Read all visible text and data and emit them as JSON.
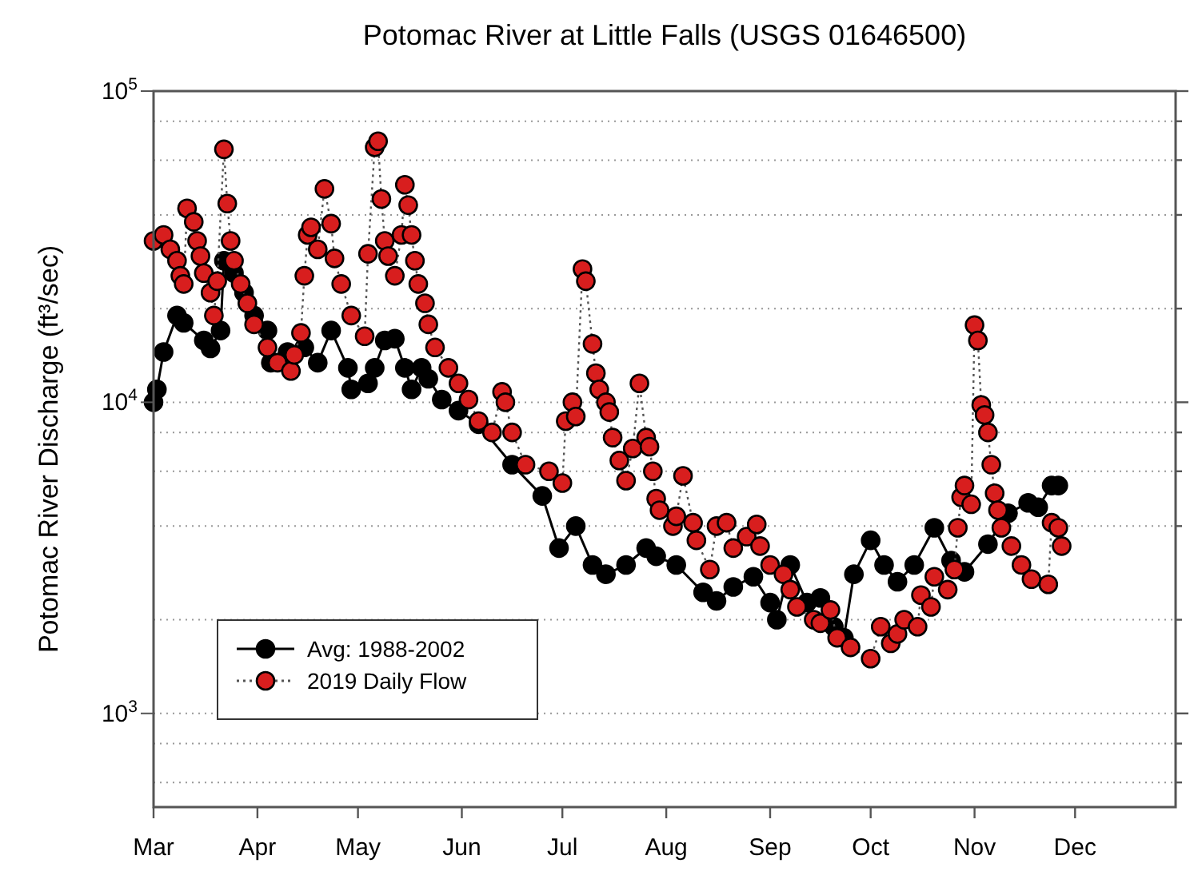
{
  "chart_data": {
    "type": "line",
    "title": "Potomac River at Little Falls (USGS 01646500)",
    "ylabel": "Potomac River Discharge (ft³/sec)",
    "xlim": [
      "--03-01",
      "--12-31"
    ],
    "xticks": [
      {
        "value": "--03-01",
        "label": "Mar"
      },
      {
        "value": "--04-01",
        "label": "Apr"
      },
      {
        "value": "--05-01",
        "label": "May"
      },
      {
        "value": "--06-01",
        "label": "Jun"
      },
      {
        "value": "--07-01",
        "label": "Jul"
      },
      {
        "value": "--08-01",
        "label": "Aug"
      },
      {
        "value": "--09-01",
        "label": "Sep"
      },
      {
        "value": "--10-01",
        "label": "Oct"
      },
      {
        "value": "--11-01",
        "label": "Nov"
      },
      {
        "value": "--12-01",
        "label": "Dec"
      }
    ],
    "ylim": [
      500,
      100000
    ],
    "log": true,
    "yticks": [
      {
        "value": 600,
        "label": null
      },
      {
        "value": 800,
        "label": null
      },
      {
        "value": 1000,
        "label": "10$^{3}$"
      },
      {
        "value": 2000,
        "label": null
      },
      {
        "value": 4000,
        "label": null
      },
      {
        "value": 6000,
        "label": null
      },
      {
        "value": 8000,
        "label": null
      },
      {
        "value": 10000,
        "label": "10$^{4}$"
      },
      {
        "value": 20000,
        "label": null
      },
      {
        "value": 40000,
        "label": null
      },
      {
        "value": 60000,
        "label": null
      },
      {
        "value": 80000,
        "label": null
      },
      {
        "value": 100000,
        "label": "10$^{5}$"
      }
    ],
    "grid": "y",
    "legend": "bottom left",
    "marker": "circle",
    "series": [
      {
        "name": "Avg: 1988-2002",
        "color": "#000000",
        "line_style": "solid",
        "x": [
          "--03-01",
          "--03-02",
          "--03-04",
          "--03-08",
          "--03-10",
          "--03-16",
          "--03-18",
          "--03-21",
          "--03-22",
          "--03-25",
          "--03-28",
          "--03-31",
          "--04-04",
          "--04-05",
          "--04-10",
          "--04-15",
          "--04-19",
          "--04-23",
          "--04-28",
          "--04-29",
          "--05-04",
          "--05-06",
          "--05-09",
          "--05-12",
          "--05-15",
          "--05-17",
          "--05-20",
          "--05-22",
          "--05-26",
          "--05-31",
          "--06-06",
          "--06-16",
          "--06-25",
          "--06-30",
          "--07-05",
          "--07-10",
          "--07-14",
          "--07-20",
          "--07-26",
          "--07-29",
          "--08-04",
          "--08-12",
          "--08-16",
          "--08-21",
          "--08-27",
          "--09-01",
          "--09-03",
          "--09-07",
          "--09-12",
          "--09-16",
          "--09-20",
          "--09-23",
          "--09-26",
          "--10-01",
          "--10-05",
          "--10-09",
          "--10-14",
          "--10-20",
          "--10-25",
          "--10-29",
          "--11-05",
          "--11-11",
          "--11-17",
          "--11-20",
          "--11-24",
          "--11-26"
        ],
        "values": [
          10000,
          11000,
          14500,
          19000,
          18000,
          15800,
          14900,
          17000,
          28500,
          26000,
          22500,
          19000,
          17000,
          13400,
          14500,
          15000,
          13400,
          17000,
          12900,
          11000,
          11500,
          12900,
          15800,
          16000,
          12900,
          11000,
          12900,
          11900,
          10200,
          9400,
          8500,
          6300,
          5000,
          3400,
          4000,
          3000,
          2800,
          3000,
          3400,
          3200,
          3000,
          2450,
          2300,
          2550,
          2750,
          2270,
          2000,
          3000,
          2270,
          2350,
          1900,
          1750,
          2800,
          3600,
          3000,
          2650,
          3000,
          3950,
          3100,
          2850,
          3500,
          4400,
          4750,
          4600,
          5400,
          5400
        ]
      },
      {
        "name": "2019 Daily Flow",
        "color": "#d81e1e",
        "line_style": "dotted",
        "x": [
          "--03-01",
          "--03-04",
          "--03-06",
          "--03-08",
          "--03-09",
          "--03-10",
          "--03-11",
          "--03-13",
          "--03-14",
          "--03-15",
          "--03-16",
          "--03-18",
          "--03-19",
          "--03-20",
          "--03-22",
          "--03-23",
          "--03-24",
          "--03-25",
          "--03-27",
          "--03-29",
          "--03-31",
          "--04-04",
          "--04-07",
          "--04-11",
          "--04-12",
          "--04-14",
          "--04-15",
          "--04-16",
          "--04-17",
          "--04-19",
          "--04-21",
          "--04-23",
          "--04-24",
          "--04-26",
          "--04-29",
          "--05-03",
          "--05-04",
          "--05-06",
          "--05-07",
          "--05-08",
          "--05-09",
          "--05-10",
          "--05-12",
          "--05-14",
          "--05-15",
          "--05-16",
          "--05-17",
          "--05-18",
          "--05-19",
          "--05-21",
          "--05-22",
          "--05-24",
          "--05-28",
          "--05-31",
          "--06-03",
          "--06-06",
          "--06-10",
          "--06-13",
          "--06-14",
          "--06-16",
          "--06-20",
          "--06-27",
          "--07-01",
          "--07-02",
          "--07-04",
          "--07-05",
          "--07-07",
          "--07-08",
          "--07-10",
          "--07-11",
          "--07-12",
          "--07-14",
          "--07-15",
          "--07-16",
          "--07-18",
          "--07-20",
          "--07-22",
          "--07-24",
          "--07-26",
          "--07-27",
          "--07-28",
          "--07-29",
          "--07-30",
          "--08-03",
          "--08-04",
          "--08-06",
          "--08-09",
          "--08-10",
          "--08-14",
          "--08-16",
          "--08-19",
          "--08-21",
          "--08-25",
          "--08-28",
          "--08-29",
          "--09-01",
          "--09-05",
          "--09-07",
          "--09-09",
          "--09-14",
          "--09-16",
          "--09-19",
          "--09-21",
          "--09-25",
          "--10-01",
          "--10-04",
          "--10-07",
          "--10-09",
          "--10-11",
          "--10-15",
          "--10-16",
          "--10-19",
          "--10-20",
          "--10-24",
          "--10-26",
          "--10-27",
          "--10-28",
          "--10-29",
          "--10-31",
          "--11-01",
          "--11-02",
          "--11-03",
          "--11-04",
          "--11-05",
          "--11-06",
          "--11-07",
          "--11-08",
          "--11-09",
          "--11-12",
          "--11-15",
          "--11-18",
          "--11-23",
          "--11-24",
          "--11-26",
          "--11-27"
        ],
        "values": [
          33000,
          34500,
          31000,
          28500,
          25500,
          24000,
          42000,
          38000,
          33000,
          29500,
          26000,
          22500,
          19000,
          24500,
          65000,
          43500,
          33000,
          28500,
          24000,
          20800,
          17800,
          15000,
          13400,
          12600,
          14200,
          16700,
          25500,
          34500,
          36500,
          31000,
          48500,
          37500,
          29000,
          24000,
          19000,
          16300,
          30000,
          66000,
          69000,
          45000,
          33000,
          29500,
          25500,
          34500,
          50000,
          43000,
          34500,
          28500,
          24000,
          20800,
          17800,
          15000,
          12900,
          11500,
          10200,
          8700,
          8000,
          10800,
          10000,
          8000,
          6300,
          6000,
          5500,
          8700,
          10000,
          9000,
          26800,
          24500,
          15400,
          12400,
          11000,
          10000,
          9300,
          7700,
          6500,
          5600,
          7100,
          11500,
          7700,
          7200,
          6000,
          4900,
          4500,
          4000,
          4300,
          5800,
          4100,
          3600,
          2900,
          4000,
          4100,
          3400,
          3700,
          4050,
          3450,
          3000,
          2800,
          2500,
          2200,
          2000,
          1950,
          2150,
          1750,
          1630,
          1500,
          1900,
          1680,
          1800,
          2000,
          1900,
          2400,
          2200,
          2750,
          2500,
          2900,
          3950,
          4950,
          5400,
          4700,
          17700,
          15800,
          9800,
          9100,
          8000,
          6300,
          5100,
          4500,
          3950,
          3450,
          3000,
          2700,
          2600,
          4100,
          3950,
          3450
        ]
      }
    ]
  }
}
